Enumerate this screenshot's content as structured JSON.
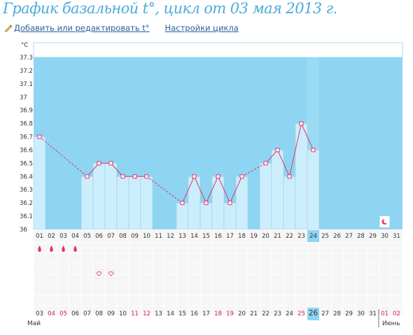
{
  "header": {
    "title": "График базальной t°, цикл от 03 мая 2013 г.",
    "add_edit_link": "Добавить или редактировать t°",
    "cycle_settings_link": "Настройки цикла"
  },
  "colors": {
    "title": "#4eaadb",
    "link": "#2a5d9c",
    "high_zone": "#8dd5f2",
    "bar_fill": "#cceefc",
    "line": "#e0356a",
    "weekend_date": "#d1284a",
    "today_highlight": "#8dd5f2"
  },
  "chart_data": {
    "type": "bar",
    "ylabel": "°C",
    "ylim": [
      36,
      37.3
    ],
    "yticks": [
      "36",
      "36.1",
      "36.2",
      "36.3",
      "36.4",
      "36.5",
      "36.6",
      "36.7",
      "36.8",
      "36.9",
      "37",
      "37.1",
      "37.2",
      "37.3"
    ],
    "cycle_days": [
      "01",
      "02",
      "03",
      "04",
      "05",
      "06",
      "07",
      "08",
      "09",
      "10",
      "11",
      "12",
      "13",
      "14",
      "15",
      "16",
      "17",
      "18",
      "19",
      "20",
      "21",
      "22",
      "23",
      "24",
      "25",
      "26",
      "27",
      "28",
      "29",
      "30",
      "31"
    ],
    "temperatures": [
      36.7,
      null,
      null,
      null,
      36.4,
      36.5,
      36.5,
      36.4,
      36.4,
      36.4,
      null,
      null,
      36.2,
      36.4,
      36.2,
      36.4,
      36.2,
      36.4,
      null,
      36.5,
      36.6,
      36.4,
      36.8,
      36.6,
      null,
      null,
      null,
      null,
      null,
      null,
      null
    ],
    "current_day": "24",
    "menstruation_days": [
      "01",
      "02",
      "03",
      "04"
    ],
    "intercourse_days": [
      "06",
      "07"
    ],
    "moon_day": "30",
    "dates": [
      "03",
      "04",
      "05",
      "06",
      "07",
      "08",
      "09",
      "10",
      "11",
      "12",
      "13",
      "14",
      "15",
      "16",
      "17",
      "18",
      "19",
      "20",
      "21",
      "22",
      "23",
      "24",
      "25",
      "26",
      "27",
      "28",
      "29",
      "30",
      "31",
      "01",
      "02"
    ],
    "weekend_dates_index": [
      1,
      2,
      8,
      9,
      15,
      16,
      22,
      29,
      30
    ],
    "today_date_index": 23,
    "months": [
      "Май",
      "Июнь"
    ]
  }
}
